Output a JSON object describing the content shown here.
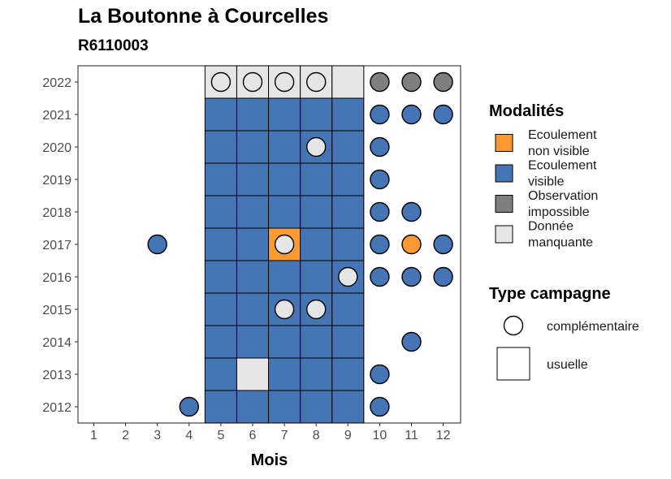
{
  "chart_data": {
    "type": "heatmap",
    "title": "La Boutonne à Courcelles",
    "subtitle": "R6110003",
    "xlabel": "Mois",
    "ylabel": "",
    "x_ticks": [
      1,
      2,
      3,
      4,
      5,
      6,
      7,
      8,
      9,
      10,
      11,
      12
    ],
    "y_ticks": [
      2012,
      2013,
      2014,
      2015,
      2016,
      2017,
      2018,
      2019,
      2020,
      2021,
      2022
    ],
    "grid": false,
    "colors": {
      "ecoulement_non_visible": "#FF9933",
      "ecoulement_visible": "#4575B4",
      "observation_impossible": "#7F7F7F",
      "donnee_manquante": "#E6E6E6"
    },
    "legend_modalites": {
      "title": "Modalités",
      "position": "right",
      "items": [
        {
          "key": "ecoulement_non_visible",
          "lines": [
            "Ecoulement",
            "non visible"
          ]
        },
        {
          "key": "ecoulement_visible",
          "lines": [
            "Ecoulement",
            "visible"
          ]
        },
        {
          "key": "observation_impossible",
          "lines": [
            "Observation",
            "impossible"
          ]
        },
        {
          "key": "donnee_manquante",
          "lines": [
            "Donnée",
            "manquante"
          ]
        }
      ]
    },
    "legend_type": {
      "title": "Type campagne",
      "position": "right",
      "items": [
        {
          "shape": "circle",
          "label": "complémentaire"
        },
        {
          "shape": "square",
          "label": "usuelle"
        }
      ]
    },
    "usuelle": [
      {
        "year": 2022,
        "values": [
          "donnee_manquante",
          "donnee_manquante",
          "donnee_manquante",
          "donnee_manquante",
          "donnee_manquante"
        ]
      },
      {
        "year": 2021,
        "values": [
          "ecoulement_visible",
          "ecoulement_visible",
          "ecoulement_visible",
          "ecoulement_visible",
          "ecoulement_visible"
        ]
      },
      {
        "year": 2020,
        "values": [
          "ecoulement_visible",
          "ecoulement_visible",
          "ecoulement_visible",
          "ecoulement_visible",
          "ecoulement_visible"
        ]
      },
      {
        "year": 2019,
        "values": [
          "ecoulement_visible",
          "ecoulement_visible",
          "ecoulement_visible",
          "ecoulement_visible",
          "ecoulement_visible"
        ]
      },
      {
        "year": 2018,
        "values": [
          "ecoulement_visible",
          "ecoulement_visible",
          "ecoulement_visible",
          "ecoulement_visible",
          "ecoulement_visible"
        ]
      },
      {
        "year": 2017,
        "values": [
          "ecoulement_visible",
          "ecoulement_visible",
          "ecoulement_non_visible",
          "ecoulement_visible",
          "ecoulement_visible"
        ]
      },
      {
        "year": 2016,
        "values": [
          "ecoulement_visible",
          "ecoulement_visible",
          "ecoulement_visible",
          "ecoulement_visible",
          "ecoulement_visible"
        ]
      },
      {
        "year": 2015,
        "values": [
          "ecoulement_visible",
          "ecoulement_visible",
          "ecoulement_visible",
          "ecoulement_visible",
          "ecoulement_visible"
        ]
      },
      {
        "year": 2014,
        "values": [
          "ecoulement_visible",
          "ecoulement_visible",
          "ecoulement_visible",
          "ecoulement_visible",
          "ecoulement_visible"
        ]
      },
      {
        "year": 2013,
        "values": [
          "ecoulement_visible",
          "donnee_manquante",
          "ecoulement_visible",
          "ecoulement_visible",
          "ecoulement_visible"
        ]
      },
      {
        "year": 2012,
        "values": [
          "ecoulement_visible",
          "ecoulement_visible",
          "ecoulement_visible",
          "ecoulement_visible",
          "ecoulement_visible"
        ]
      }
    ],
    "usuelle_months": [
      5,
      6,
      7,
      8,
      9
    ],
    "complementaire": [
      {
        "year": 2022,
        "month": 5,
        "value": "donnee_manquante"
      },
      {
        "year": 2022,
        "month": 6,
        "value": "donnee_manquante"
      },
      {
        "year": 2022,
        "month": 7,
        "value": "donnee_manquante"
      },
      {
        "year": 2022,
        "month": 8,
        "value": "donnee_manquante"
      },
      {
        "year": 2022,
        "month": 10,
        "value": "observation_impossible"
      },
      {
        "year": 2022,
        "month": 11,
        "value": "observation_impossible"
      },
      {
        "year": 2022,
        "month": 12,
        "value": "observation_impossible"
      },
      {
        "year": 2021,
        "month": 10,
        "value": "ecoulement_visible"
      },
      {
        "year": 2021,
        "month": 11,
        "value": "ecoulement_visible"
      },
      {
        "year": 2021,
        "month": 12,
        "value": "ecoulement_visible"
      },
      {
        "year": 2020,
        "month": 8,
        "value": "donnee_manquante"
      },
      {
        "year": 2020,
        "month": 10,
        "value": "ecoulement_visible"
      },
      {
        "year": 2019,
        "month": 10,
        "value": "ecoulement_visible"
      },
      {
        "year": 2018,
        "month": 10,
        "value": "ecoulement_visible"
      },
      {
        "year": 2018,
        "month": 11,
        "value": "ecoulement_visible"
      },
      {
        "year": 2017,
        "month": 3,
        "value": "ecoulement_visible"
      },
      {
        "year": 2017,
        "month": 7,
        "value": "donnee_manquante"
      },
      {
        "year": 2017,
        "month": 10,
        "value": "ecoulement_visible"
      },
      {
        "year": 2017,
        "month": 11,
        "value": "ecoulement_non_visible"
      },
      {
        "year": 2017,
        "month": 12,
        "value": "ecoulement_visible"
      },
      {
        "year": 2016,
        "month": 9,
        "value": "donnee_manquante"
      },
      {
        "year": 2016,
        "month": 10,
        "value": "ecoulement_visible"
      },
      {
        "year": 2016,
        "month": 11,
        "value": "ecoulement_visible"
      },
      {
        "year": 2016,
        "month": 12,
        "value": "ecoulement_visible"
      },
      {
        "year": 2015,
        "month": 7,
        "value": "donnee_manquante"
      },
      {
        "year": 2015,
        "month": 8,
        "value": "donnee_manquante"
      },
      {
        "year": 2014,
        "month": 11,
        "value": "ecoulement_visible"
      },
      {
        "year": 2013,
        "month": 10,
        "value": "ecoulement_visible"
      },
      {
        "year": 2012,
        "month": 4,
        "value": "ecoulement_visible"
      },
      {
        "year": 2012,
        "month": 10,
        "value": "ecoulement_visible"
      }
    ]
  }
}
